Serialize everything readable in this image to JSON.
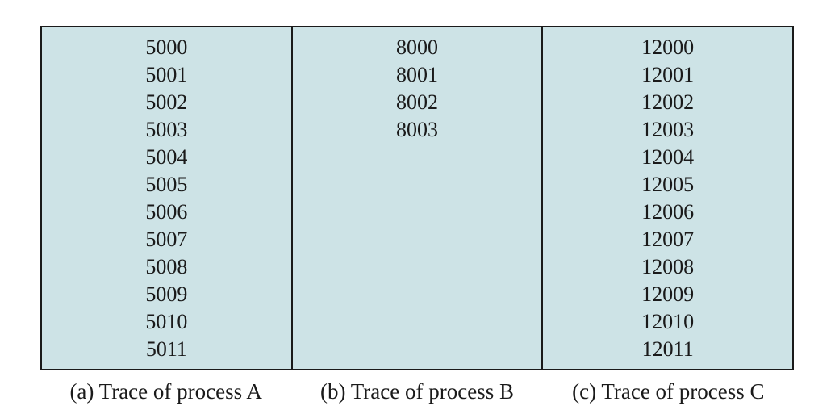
{
  "traces": [
    {
      "id": "a",
      "caption": "(a) Trace of process A",
      "addresses": [
        "5000",
        "5001",
        "5002",
        "5003",
        "5004",
        "5005",
        "5006",
        "5007",
        "5008",
        "5009",
        "5010",
        "5011"
      ]
    },
    {
      "id": "b",
      "caption": "(b) Trace of process B",
      "addresses": [
        "8000",
        "8001",
        "8002",
        "8003"
      ]
    },
    {
      "id": "c",
      "caption": "(c) Trace of process C",
      "addresses": [
        "12000",
        "12001",
        "12002",
        "12003",
        "12004",
        "12005",
        "12006",
        "12007",
        "12008",
        "12009",
        "12010",
        "12011"
      ]
    }
  ],
  "colors": {
    "cell_background": "#cde3e6",
    "border": "#1a1a1a",
    "text": "#1a1a1a"
  }
}
